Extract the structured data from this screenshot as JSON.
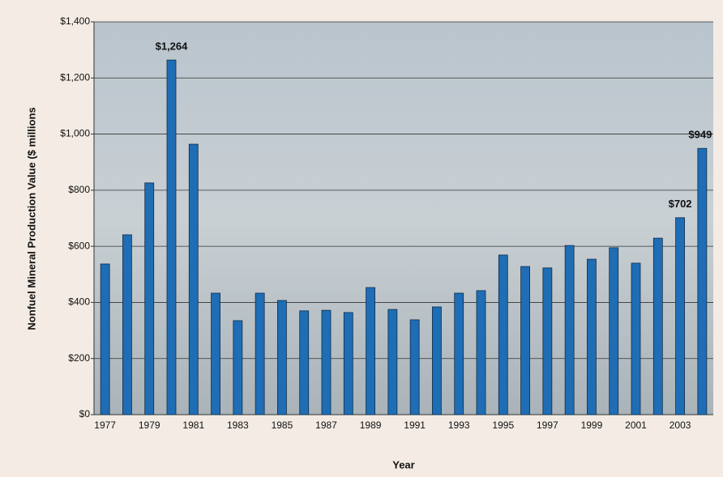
{
  "chart_data": {
    "type": "bar",
    "x_label": "Year",
    "y_label": "Nonfuel Mineral Production Value ($ millions",
    "categories": [
      "1977",
      null,
      "1979",
      null,
      "1981",
      null,
      "1983",
      null,
      "1985",
      null,
      "1987",
      null,
      "1989",
      null,
      "1991",
      null,
      "1993",
      null,
      "1995",
      null,
      "1997",
      null,
      "1999",
      null,
      "2001",
      null,
      "2003",
      null
    ],
    "values": [
      537,
      641,
      826,
      1264,
      964,
      433,
      335,
      433,
      407,
      370,
      372,
      364,
      453,
      375,
      338,
      384,
      433,
      442,
      569,
      528,
      523,
      603,
      554,
      595,
      540,
      629,
      702,
      949
    ],
    "value_labels": [
      null,
      null,
      null,
      "$1,264",
      null,
      null,
      null,
      null,
      null,
      null,
      null,
      null,
      null,
      null,
      null,
      null,
      null,
      null,
      null,
      null,
      null,
      null,
      null,
      null,
      null,
      null,
      "$702",
      "$949"
    ],
    "color": "#1f6db4",
    "label_color": "#2a86c8",
    "ylim": [
      0,
      1400
    ],
    "yticks": [
      {
        "value": 0,
        "label": "$0"
      },
      {
        "value": 200,
        "label": "$200"
      },
      {
        "value": 400,
        "label": "$400"
      },
      {
        "value": 600,
        "label": "$600"
      },
      {
        "value": 800,
        "label": "$800"
      },
      {
        "value": 1000,
        "label": "$1,000"
      },
      {
        "value": 1200,
        "label": "$1,200"
      },
      {
        "value": 1400,
        "label": "$1,400"
      }
    ],
    "grid": true
  }
}
